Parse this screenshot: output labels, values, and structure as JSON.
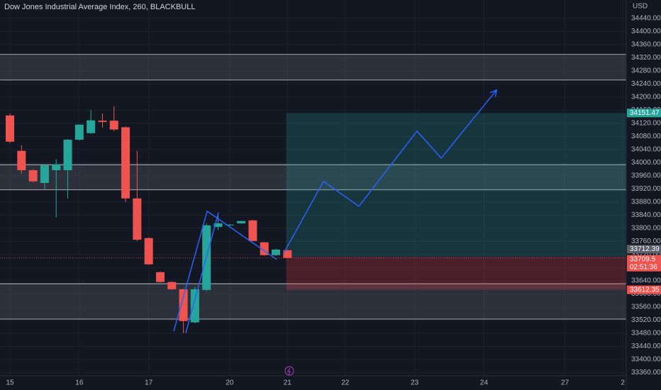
{
  "chart_data": {
    "type": "candlestick",
    "title": "Dow Jones Industrial Average Index, 260, BLACKBULL",
    "currency": "USD",
    "up_color": "#26a69a",
    "down_color": "#ef5350",
    "open": [
      34144,
      34036,
      33977,
      33938,
      33977,
      33977,
      34070,
      34090,
      34128,
      34128,
      34108,
      33891,
      33770,
      33666,
      33636,
      33614,
      33513,
      33612,
      33804,
      33809,
      33815,
      33824,
      33757,
      33718,
      33733
    ],
    "high": [
      34150,
      34053,
      33980,
      33995,
      34010,
      34072,
      34116,
      34161,
      34150,
      34172,
      34110,
      34036,
      33772,
      33668,
      33638,
      33615,
      33621,
      33815,
      33848,
      33813,
      33823,
      33826,
      33758,
      33737,
      33735
    ],
    "low": [
      34060,
      33967,
      33940,
      33917,
      33833,
      33891,
      34068,
      34088,
      34107,
      34096,
      33880,
      33761,
      33688,
      33634,
      33612,
      33480,
      33510,
      33608,
      33794,
      33807,
      33813,
      33761,
      33716,
      33715,
      33709.5
    ],
    "close": [
      34064,
      33977,
      33943,
      33992,
      33995,
      34070,
      34116,
      34129,
      34124,
      34101,
      33891,
      33765,
      33690,
      33636,
      33614,
      33517,
      33614,
      33809,
      33815,
      33811,
      33822,
      33761,
      33718,
      33735,
      33709.5
    ],
    "xlim": [
      -0.86,
      53.3
    ],
    "ylim": [
      33350,
      34496
    ],
    "xticks": [
      {
        "value": 0,
        "label": "15"
      },
      {
        "value": 6,
        "label": "16"
      },
      {
        "value": 12,
        "label": "17"
      },
      {
        "value": 19,
        "label": "20"
      },
      {
        "value": 24,
        "label": "21"
      },
      {
        "value": 29,
        "label": "22"
      },
      {
        "value": 35,
        "label": "23"
      },
      {
        "value": 41,
        "label": "24"
      },
      {
        "value": 48,
        "label": "27"
      },
      {
        "value": 53,
        "label": "2"
      }
    ],
    "yticks": [
      {
        "value": 33360,
        "label": "33360.00"
      },
      {
        "value": 33400,
        "label": "33400.00"
      },
      {
        "value": 33440,
        "label": "33440.00"
      },
      {
        "value": 33480,
        "label": "33480.00"
      },
      {
        "value": 33520,
        "label": "33520.00"
      },
      {
        "value": 33560,
        "label": "33560.00"
      },
      {
        "value": 33600,
        "label": "33600.00"
      },
      {
        "value": 33640,
        "label": "33640.00"
      },
      {
        "value": 33680,
        "label": "33680.00"
      },
      {
        "value": 33720,
        "label": "33720.00"
      },
      {
        "value": 33760,
        "label": "33760.00"
      },
      {
        "value": 33800,
        "label": "33800.00"
      },
      {
        "value": 33840,
        "label": "33840.00"
      },
      {
        "value": 33880,
        "label": "33880.00"
      },
      {
        "value": 33920,
        "label": "33920.00"
      },
      {
        "value": 33960,
        "label": "33960.00"
      },
      {
        "value": 34000,
        "label": "34000.00"
      },
      {
        "value": 34040,
        "label": "34040.00"
      },
      {
        "value": 34080,
        "label": "34080.00"
      },
      {
        "value": 34120,
        "label": "34120.00"
      },
      {
        "value": 34160,
        "label": "34160.00"
      },
      {
        "value": 34200,
        "label": "34200.00"
      },
      {
        "value": 34240,
        "label": "34240.00"
      },
      {
        "value": 34280,
        "label": "34280.00"
      },
      {
        "value": 34320,
        "label": "34320.00"
      },
      {
        "value": 34360,
        "label": "34360.00"
      },
      {
        "value": 34400,
        "label": "34400.00"
      },
      {
        "value": 34440,
        "label": "34440.00"
      }
    ],
    "zones": [
      [
        34330,
        34252
      ],
      [
        33994,
        33917
      ],
      [
        33631,
        33523
      ]
    ],
    "position": {
      "target": 34151.47,
      "entry": 33712.39,
      "stop": 33612.35,
      "start": 23.9
    },
    "current_price": 33709.5,
    "countdown": "02:51:36",
    "drawings": [
      {
        "x": [
          14.17,
          17.06,
          23.07
        ],
        "y": [
          33486.5,
          33852,
          33705
        ]
      },
      {
        "x": [
          15.2,
          18.04
        ],
        "y": [
          33480,
          33847.6
        ]
      },
      {
        "x": [
          23.68,
          27.12,
          30.18,
          35.2,
          37.3,
          42.09
        ],
        "y": [
          33724.4,
          33942.7,
          33867,
          34096.2,
          34014,
          34221.6
        ]
      }
    ]
  }
}
